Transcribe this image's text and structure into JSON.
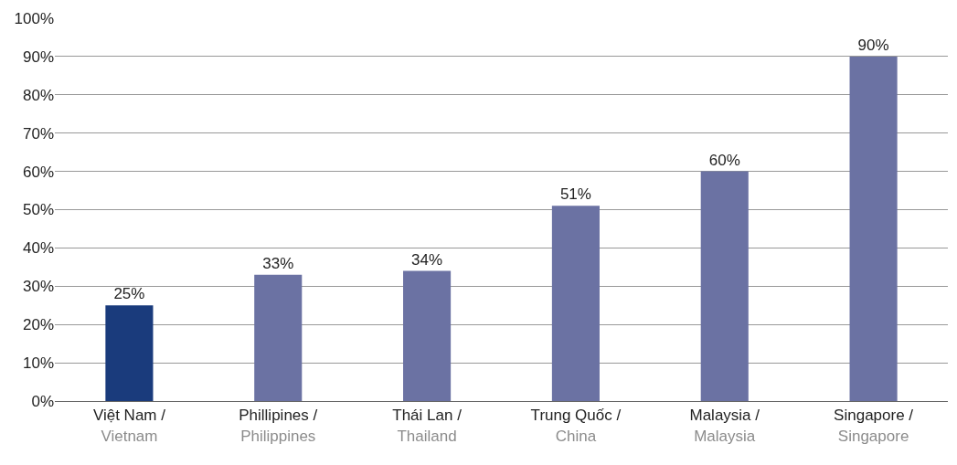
{
  "chart_data": {
    "type": "bar",
    "categories": [
      "Việt Nam /\nVietnam",
      "Phillipines /\nPhilippines",
      "Thái Lan /\nThailand",
      "Trung Quốc /\nChina",
      "Malaysia /\nMalaysia",
      "Singapore /\nSingapore"
    ],
    "values": [
      25,
      33,
      34,
      51,
      60,
      90
    ],
    "value_labels": [
      "25%",
      "33%",
      "34%",
      "51%",
      "60%",
      "90%"
    ],
    "colors": [
      "#1a3b7c",
      "#6b72a3",
      "#6b72a3",
      "#6b72a3",
      "#6b72a3",
      "#6b72a3"
    ],
    "ylim": [
      0,
      100
    ],
    "yticks": [
      {
        "value": 0,
        "label": "0%"
      },
      {
        "value": 10,
        "label": "10%"
      },
      {
        "value": 20,
        "label": "20%"
      },
      {
        "value": 30,
        "label": "30%"
      },
      {
        "value": 40,
        "label": "40%"
      },
      {
        "value": 50,
        "label": "50%"
      },
      {
        "value": 60,
        "label": "60%"
      },
      {
        "value": 70,
        "label": "70%"
      },
      {
        "value": 80,
        "label": "80%"
      },
      {
        "value": 90,
        "label": "90%"
      },
      {
        "value": 100,
        "label": "100%"
      }
    ],
    "grid": "y"
  }
}
